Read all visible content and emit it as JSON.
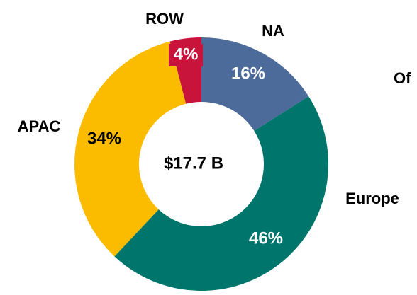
{
  "chart_data": {
    "type": "donut",
    "categories": [
      "NA",
      "Europe",
      "APAC",
      "ROW"
    ],
    "values": [
      16,
      46,
      34,
      4
    ],
    "value_labels": [
      "16%",
      "46%",
      "34%",
      "4%"
    ],
    "colors": [
      "#4d6b9a",
      "#00756b",
      "#fbbc00",
      "#c8133b"
    ],
    "center_label": "$17.7 B",
    "annotation": "Of"
  }
}
